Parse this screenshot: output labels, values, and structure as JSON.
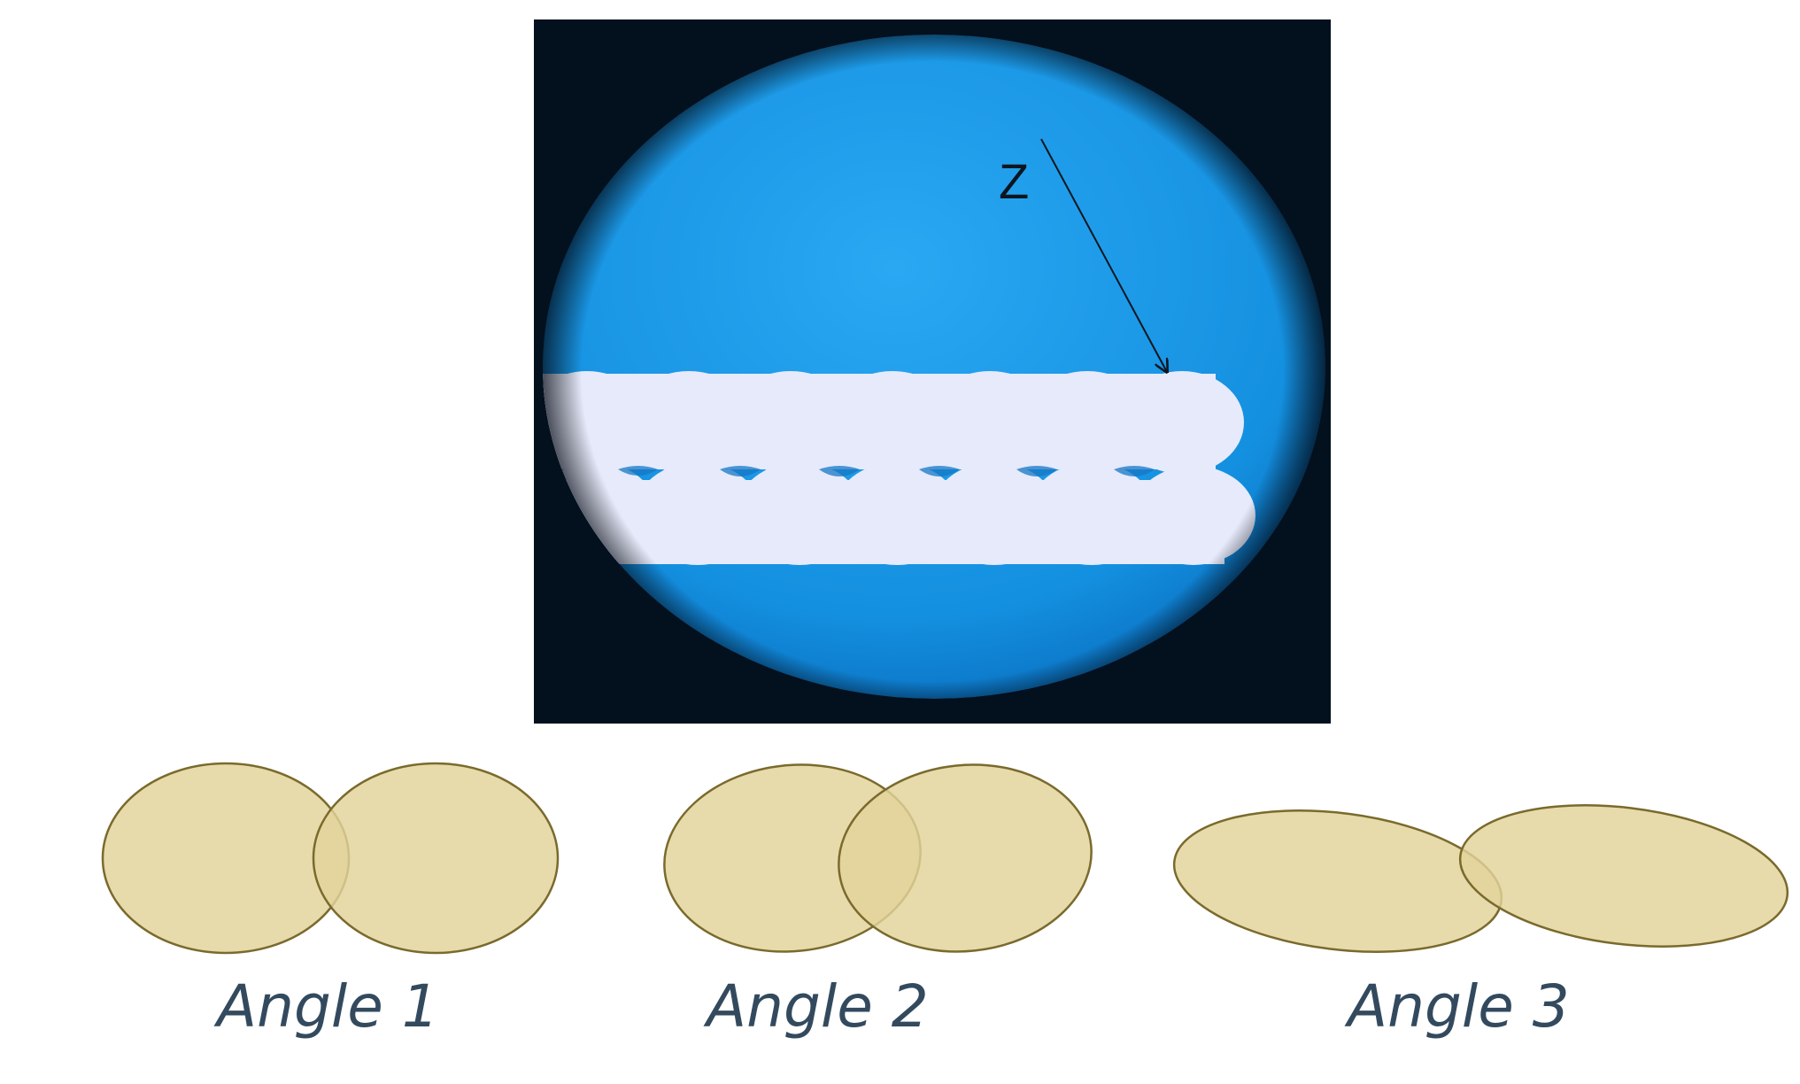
{
  "micrograph": {
    "axis_label": "Z",
    "colors": {
      "frame": "#03101e",
      "field": "#1795e6",
      "field_center": "#2aa8f2",
      "filaments": "#e6eafb"
    }
  },
  "angles": [
    {
      "label": "Angle 1"
    },
    {
      "label": "Angle 2"
    },
    {
      "label": "Angle 3"
    }
  ],
  "ellipse_style": {
    "fill": "#e2d39a",
    "stroke": "#7a6a2c"
  }
}
